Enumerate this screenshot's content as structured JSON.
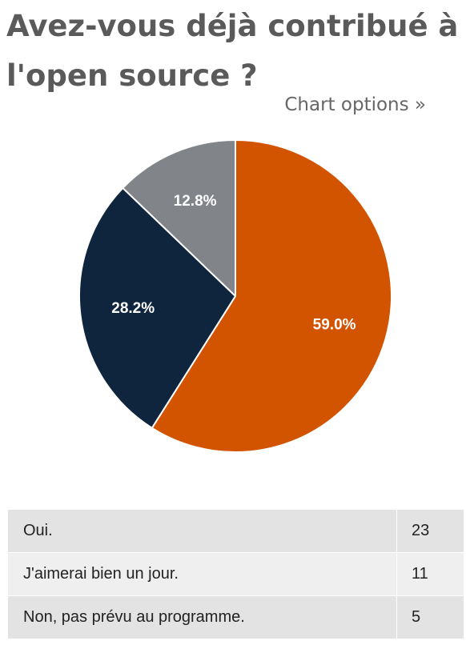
{
  "title": "Avez-vous déjà contribué à l'open source ?",
  "chart_options_label": "Chart options »",
  "chart_data": {
    "type": "pie",
    "categories": [
      "Oui.",
      "J'aimerai bien un jour.",
      "Non, pas prévu au programme."
    ],
    "values": [
      23,
      11,
      5
    ],
    "percent_labels": [
      "59.0%",
      "28.2%",
      "12.8%"
    ],
    "colors": [
      "#d35400",
      "#0f253d",
      "#818589"
    ],
    "legend": "none"
  },
  "table": {
    "rows": [
      {
        "label": "Oui.",
        "value": "23"
      },
      {
        "label": "J'aimerai bien un jour.",
        "value": "11"
      },
      {
        "label": "Non, pas prévu au programme.",
        "value": "5"
      }
    ]
  }
}
